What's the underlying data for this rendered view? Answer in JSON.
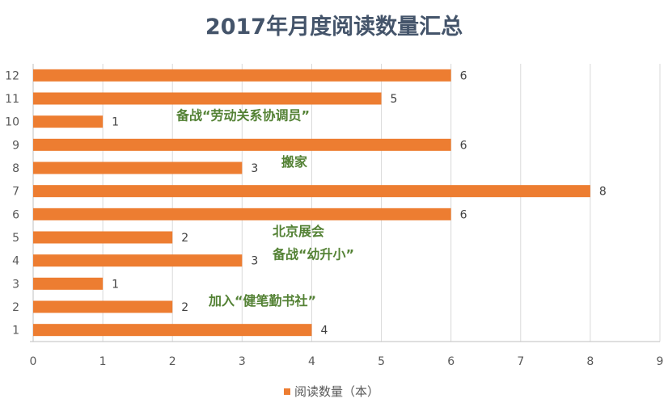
{
  "chart_data": {
    "type": "bar",
    "orientation": "horizontal",
    "title": "2017年月度阅读数量汇总",
    "categories": [
      "1",
      "2",
      "3",
      "4",
      "5",
      "6",
      "7",
      "8",
      "9",
      "10",
      "11",
      "12"
    ],
    "series": [
      {
        "name": "阅读数量（本）",
        "values": [
          4,
          2,
          1,
          3,
          2,
          6,
          8,
          3,
          6,
          1,
          5,
          6
        ],
        "color": "#ed7d31"
      }
    ],
    "xlim": [
      0,
      9
    ],
    "xticks": [
      0,
      1,
      2,
      3,
      4,
      5,
      6,
      7,
      8,
      9
    ],
    "grid": true,
    "legend": "bottom",
    "annotations": [
      {
        "text": "备战“劳动关系协调员”",
        "category": "10"
      },
      {
        "text": "搬家",
        "category": "8"
      },
      {
        "text": "北京展会",
        "category": "5"
      },
      {
        "text": "备战“幼升小”",
        "category": "4"
      },
      {
        "text": "加入“健笔勤书社”",
        "category": "2"
      }
    ],
    "colors": {
      "bar": "#ed7d31",
      "annotation": "#548235",
      "title": "#44546a"
    }
  }
}
